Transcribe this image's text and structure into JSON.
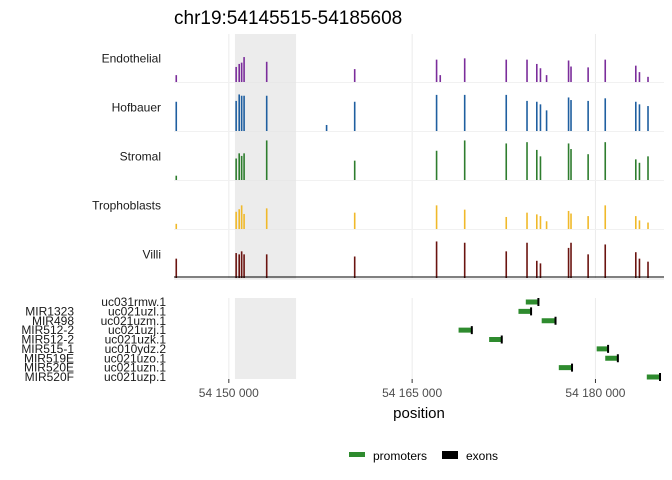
{
  "chart_data": {
    "type": "genome-track",
    "title": "chr19:54145515-54185608",
    "region": {
      "chrom": "chr19",
      "start": 54145515,
      "end": 54185608
    },
    "xlabel": "position",
    "xlim": [
      54145515,
      54185608
    ],
    "x_ticks": [
      54150000,
      54165000,
      54180000
    ],
    "x_tick_labels": [
      "54 150 000",
      "54 165 000",
      "54 180 000"
    ],
    "highlight": [
      54150500,
      54155500
    ],
    "highlight_color": "#ececec",
    "grid": true,
    "tracks": [
      {
        "name": "Endothelial",
        "color": "#7b2d9b",
        "peaks": [
          [
            54145700,
            0.16
          ],
          [
            54150600,
            0.35
          ],
          [
            54150850,
            0.42
          ],
          [
            54151050,
            0.45
          ],
          [
            54151250,
            0.58
          ],
          [
            54153100,
            0.47
          ],
          [
            54160300,
            0.3
          ],
          [
            54167000,
            0.52
          ],
          [
            54167300,
            0.16
          ],
          [
            54169300,
            0.55
          ],
          [
            54172700,
            0.52
          ],
          [
            54174400,
            0.52
          ],
          [
            54175200,
            0.42
          ],
          [
            54175500,
            0.32
          ],
          [
            54176000,
            0.16
          ],
          [
            54177800,
            0.5
          ],
          [
            54178000,
            0.36
          ],
          [
            54179400,
            0.34
          ],
          [
            54180800,
            0.52
          ],
          [
            54183300,
            0.38
          ],
          [
            54183600,
            0.23
          ],
          [
            54184300,
            0.12
          ]
        ]
      },
      {
        "name": "Hofbauer",
        "color": "#1f5fa0",
        "peaks": [
          [
            54145700,
            0.68
          ],
          [
            54150600,
            0.7
          ],
          [
            54150850,
            0.85
          ],
          [
            54151050,
            0.82
          ],
          [
            54151250,
            0.82
          ],
          [
            54153100,
            0.82
          ],
          [
            54158000,
            0.14
          ],
          [
            54160300,
            0.68
          ],
          [
            54167000,
            0.84
          ],
          [
            54169300,
            0.84
          ],
          [
            54172700,
            0.84
          ],
          [
            54174400,
            0.7
          ],
          [
            54175200,
            0.68
          ],
          [
            54175500,
            0.62
          ],
          [
            54176000,
            0.48
          ],
          [
            54177800,
            0.78
          ],
          [
            54178000,
            0.72
          ],
          [
            54179400,
            0.7
          ],
          [
            54180800,
            0.76
          ],
          [
            54183300,
            0.68
          ],
          [
            54183600,
            0.62
          ],
          [
            54184300,
            0.58
          ]
        ]
      },
      {
        "name": "Stromal",
        "color": "#2e7d2e",
        "peaks": [
          [
            54145700,
            0.1
          ],
          [
            54150600,
            0.5
          ],
          [
            54150850,
            0.62
          ],
          [
            54151050,
            0.56
          ],
          [
            54151250,
            0.62
          ],
          [
            54153100,
            0.92
          ],
          [
            54160300,
            0.45
          ],
          [
            54167000,
            0.68
          ],
          [
            54169300,
            0.92
          ],
          [
            54172700,
            0.85
          ],
          [
            54174400,
            0.88
          ],
          [
            54175200,
            0.7
          ],
          [
            54175500,
            0.55
          ],
          [
            54177800,
            0.85
          ],
          [
            54178000,
            0.72
          ],
          [
            54179400,
            0.6
          ],
          [
            54180800,
            0.88
          ],
          [
            54183300,
            0.48
          ],
          [
            54183600,
            0.4
          ],
          [
            54184300,
            0.55
          ]
        ]
      },
      {
        "name": "Trophoblasts",
        "color": "#f0b92a",
        "peaks": [
          [
            54145700,
            0.12
          ],
          [
            54150600,
            0.4
          ],
          [
            54150850,
            0.46
          ],
          [
            54151050,
            0.55
          ],
          [
            54151250,
            0.35
          ],
          [
            54153100,
            0.48
          ],
          [
            54160300,
            0.38
          ],
          [
            54167000,
            0.55
          ],
          [
            54169300,
            0.45
          ],
          [
            54172700,
            0.28
          ],
          [
            54174400,
            0.38
          ],
          [
            54175200,
            0.34
          ],
          [
            54175500,
            0.3
          ],
          [
            54176000,
            0.18
          ],
          [
            54177800,
            0.42
          ],
          [
            54178000,
            0.36
          ],
          [
            54179400,
            0.3
          ],
          [
            54180800,
            0.55
          ],
          [
            54183300,
            0.3
          ],
          [
            54183600,
            0.2
          ],
          [
            54184300,
            0.15
          ]
        ]
      },
      {
        "name": "Villi",
        "color": "#6b1410",
        "peaks": [
          [
            54145700,
            0.45
          ],
          [
            54150600,
            0.58
          ],
          [
            54150850,
            0.55
          ],
          [
            54151050,
            0.62
          ],
          [
            54151250,
            0.55
          ],
          [
            54153100,
            0.55
          ],
          [
            54160300,
            0.5
          ],
          [
            54167000,
            0.85
          ],
          [
            54169300,
            0.82
          ],
          [
            54172700,
            0.62
          ],
          [
            54174400,
            0.82
          ],
          [
            54175200,
            0.4
          ],
          [
            54175500,
            0.34
          ],
          [
            54177800,
            0.7
          ],
          [
            54178000,
            0.82
          ],
          [
            54179400,
            0.55
          ],
          [
            54180800,
            0.78
          ],
          [
            54183300,
            0.6
          ],
          [
            54183600,
            0.45
          ],
          [
            54184300,
            0.38
          ]
        ]
      }
    ],
    "genes": [
      {
        "symbol": "",
        "transcript": "uc031rmw.1",
        "start": 54174300,
        "end": 54175400,
        "exon": [
          54175250,
          54175400
        ]
      },
      {
        "symbol": "MIR1323",
        "transcript": "uc021uzl.1",
        "start": 54173700,
        "end": 54174800,
        "exon": [
          54174650,
          54174800
        ]
      },
      {
        "symbol": "MIR498",
        "transcript": "uc021uzm.1",
        "start": 54175600,
        "end": 54176800,
        "exon": [
          54176650,
          54176800
        ]
      },
      {
        "symbol": "MIR512-2",
        "transcript": "uc021uzj.1",
        "start": 54168800,
        "end": 54169950,
        "exon": [
          54169800,
          54169950
        ]
      },
      {
        "symbol": "MIR512-2",
        "transcript": "uc021uzk.1",
        "start": 54171300,
        "end": 54172400,
        "exon": [
          54172250,
          54172400
        ]
      },
      {
        "symbol": "MIR515-1",
        "transcript": "uc010ydz.2",
        "start": 54180100,
        "end": 54181100,
        "exon": [
          54180950,
          54181100
        ]
      },
      {
        "symbol": "MIR519E",
        "transcript": "uc021uzo.1",
        "start": 54180800,
        "end": 54181900,
        "exon": [
          54181750,
          54181900
        ]
      },
      {
        "symbol": "MIR520E",
        "transcript": "uc021uzn.1",
        "start": 54177000,
        "end": 54178150,
        "exon": [
          54178000,
          54178150
        ]
      },
      {
        "symbol": "MIR520F",
        "transcript": "uc021uzp.1",
        "start": 54184200,
        "end": 54185350,
        "exon": [
          54185200,
          54185350
        ]
      }
    ],
    "legend": {
      "position": "bottom",
      "items": [
        {
          "label": "promoters",
          "color": "#2e8b2e",
          "kind": "promoter"
        },
        {
          "label": "exons",
          "color": "#000000",
          "kind": "exon"
        }
      ]
    }
  }
}
